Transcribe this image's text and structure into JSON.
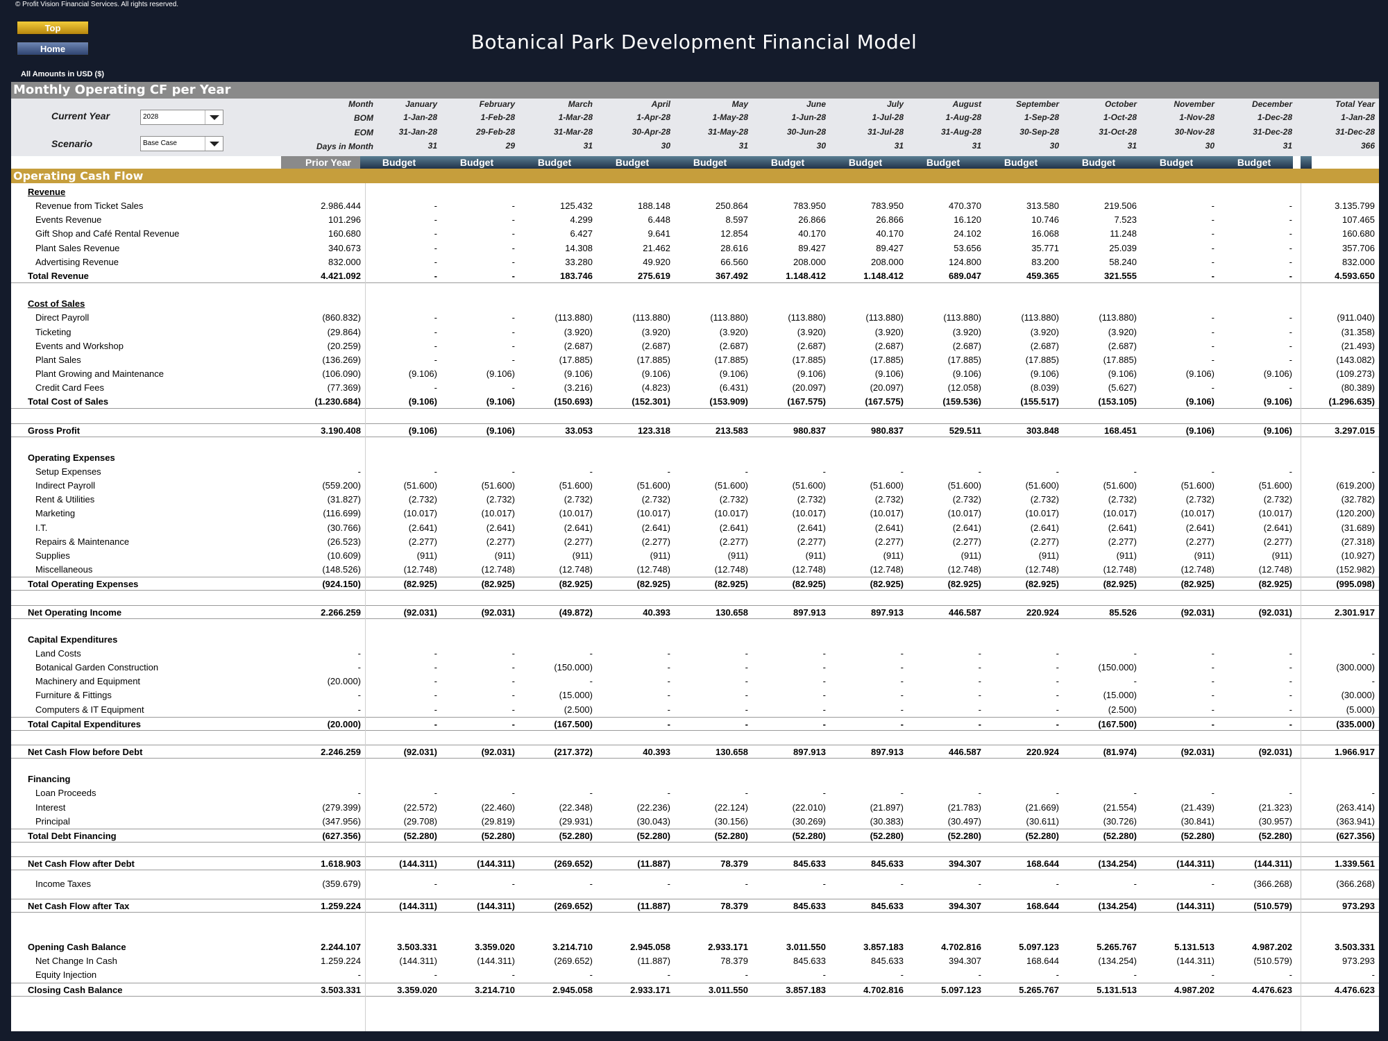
{
  "copyright": "© Profit Vision Financial Services. All rights reserved.",
  "nav": {
    "top_label": "Top",
    "home_label": "Home"
  },
  "title": "Botanical Park Development Financial Model",
  "amounts_note": "All Amounts in  USD ($)",
  "section_title": "Monthly Operating CF per Year",
  "controls": {
    "current_year_label": "Current Year",
    "current_year_value": "2028",
    "scenario_label": "Scenario",
    "scenario_value": "Base Case"
  },
  "header_labels": {
    "month": "Month",
    "bom": "BOM",
    "eom": "EOM",
    "days": "Days in Month"
  },
  "columns": [
    {
      "month": "",
      "bom": "",
      "eom": "",
      "days": "",
      "status": "Prior Year"
    },
    {
      "month": "January",
      "bom": "1-Jan-28",
      "eom": "31-Jan-28",
      "days": "31",
      "status": "Budget"
    },
    {
      "month": "February",
      "bom": "1-Feb-28",
      "eom": "29-Feb-28",
      "days": "29",
      "status": "Budget"
    },
    {
      "month": "March",
      "bom": "1-Mar-28",
      "eom": "31-Mar-28",
      "days": "31",
      "status": "Budget"
    },
    {
      "month": "April",
      "bom": "1-Apr-28",
      "eom": "30-Apr-28",
      "days": "30",
      "status": "Budget"
    },
    {
      "month": "May",
      "bom": "1-May-28",
      "eom": "31-May-28",
      "days": "31",
      "status": "Budget"
    },
    {
      "month": "June",
      "bom": "1-Jun-28",
      "eom": "30-Jun-28",
      "days": "30",
      "status": "Budget"
    },
    {
      "month": "July",
      "bom": "1-Jul-28",
      "eom": "31-Jul-28",
      "days": "31",
      "status": "Budget"
    },
    {
      "month": "August",
      "bom": "1-Aug-28",
      "eom": "31-Aug-28",
      "days": "31",
      "status": "Budget"
    },
    {
      "month": "September",
      "bom": "1-Sep-28",
      "eom": "30-Sep-28",
      "days": "30",
      "status": "Budget"
    },
    {
      "month": "October",
      "bom": "1-Oct-28",
      "eom": "31-Oct-28",
      "days": "31",
      "status": "Budget"
    },
    {
      "month": "November",
      "bom": "1-Nov-28",
      "eom": "30-Nov-28",
      "days": "30",
      "status": "Budget"
    },
    {
      "month": "December",
      "bom": "1-Dec-28",
      "eom": "31-Dec-28",
      "days": "31",
      "status": "Budget"
    },
    {
      "month": "Total Year",
      "bom": "1-Jan-28",
      "eom": "31-Dec-28",
      "days": "366",
      "status": ""
    }
  ],
  "ocf_title": "Operating Cash Flow",
  "rows": [
    {
      "type": "heading",
      "ul": true,
      "label": "Revenue"
    },
    {
      "type": "sub",
      "label": "Revenue from Ticket Sales",
      "values": [
        "2.986.444",
        "-",
        "-",
        "125.432",
        "188.148",
        "250.864",
        "783.950",
        "783.950",
        "470.370",
        "313.580",
        "219.506",
        "-",
        "-",
        "3.135.799"
      ]
    },
    {
      "type": "sub",
      "label": "Events Revenue",
      "values": [
        "101.296",
        "-",
        "-",
        "4.299",
        "6.448",
        "8.597",
        "26.866",
        "26.866",
        "16.120",
        "10.746",
        "7.523",
        "-",
        "-",
        "107.465"
      ]
    },
    {
      "type": "sub",
      "label": "Gift Shop and Café Rental Revenue",
      "values": [
        "160.680",
        "-",
        "-",
        "6.427",
        "9.641",
        "12.854",
        "40.170",
        "40.170",
        "24.102",
        "16.068",
        "11.248",
        "-",
        "-",
        "160.680"
      ]
    },
    {
      "type": "sub",
      "label": "Plant Sales Revenue",
      "values": [
        "340.673",
        "-",
        "-",
        "14.308",
        "21.462",
        "28.616",
        "89.427",
        "89.427",
        "53.656",
        "35.771",
        "25.039",
        "-",
        "-",
        "357.706"
      ]
    },
    {
      "type": "sub",
      "label": "Advertising Revenue",
      "values": [
        "832.000",
        "-",
        "-",
        "33.280",
        "49.920",
        "66.560",
        "208.000",
        "208.000",
        "124.800",
        "83.200",
        "58.240",
        "-",
        "-",
        "832.000"
      ]
    },
    {
      "type": "total",
      "label": "Total Revenue",
      "values": [
        "4.421.092",
        "-",
        "-",
        "183.746",
        "275.619",
        "367.492",
        "1.148.412",
        "1.148.412",
        "689.047",
        "459.365",
        "321.555",
        "-",
        "-",
        "4.593.650"
      ]
    },
    {
      "type": "blank"
    },
    {
      "type": "heading",
      "ul": true,
      "label": "Cost of Sales"
    },
    {
      "type": "sub",
      "label": "Direct Payroll",
      "values": [
        "(860.832)",
        "-",
        "-",
        "(113.880)",
        "(113.880)",
        "(113.880)",
        "(113.880)",
        "(113.880)",
        "(113.880)",
        "(113.880)",
        "(113.880)",
        "-",
        "-",
        "(911.040)"
      ]
    },
    {
      "type": "sub",
      "label": "Ticketing",
      "values": [
        "(29.864)",
        "-",
        "-",
        "(3.920)",
        "(3.920)",
        "(3.920)",
        "(3.920)",
        "(3.920)",
        "(3.920)",
        "(3.920)",
        "(3.920)",
        "-",
        "-",
        "(31.358)"
      ]
    },
    {
      "type": "sub",
      "label": "Events and Workshop",
      "values": [
        "(20.259)",
        "-",
        "-",
        "(2.687)",
        "(2.687)",
        "(2.687)",
        "(2.687)",
        "(2.687)",
        "(2.687)",
        "(2.687)",
        "(2.687)",
        "-",
        "-",
        "(21.493)"
      ]
    },
    {
      "type": "sub",
      "label": "Plant Sales",
      "values": [
        "(136.269)",
        "-",
        "-",
        "(17.885)",
        "(17.885)",
        "(17.885)",
        "(17.885)",
        "(17.885)",
        "(17.885)",
        "(17.885)",
        "(17.885)",
        "-",
        "-",
        "(143.082)"
      ]
    },
    {
      "type": "sub",
      "label": "Plant Growing and Maintenance",
      "values": [
        "(106.090)",
        "(9.106)",
        "(9.106)",
        "(9.106)",
        "(9.106)",
        "(9.106)",
        "(9.106)",
        "(9.106)",
        "(9.106)",
        "(9.106)",
        "(9.106)",
        "(9.106)",
        "(9.106)",
        "(109.273)"
      ]
    },
    {
      "type": "sub",
      "label": "Credit Card Fees",
      "values": [
        "(77.369)",
        "-",
        "-",
        "(3.216)",
        "(4.823)",
        "(6.431)",
        "(20.097)",
        "(20.097)",
        "(12.058)",
        "(8.039)",
        "(5.627)",
        "-",
        "-",
        "(80.389)"
      ]
    },
    {
      "type": "total",
      "label": "Total Cost of Sales",
      "values": [
        "(1.230.684)",
        "(9.106)",
        "(9.106)",
        "(150.693)",
        "(152.301)",
        "(153.909)",
        "(167.575)",
        "(167.575)",
        "(159.536)",
        "(155.517)",
        "(153.105)",
        "(9.106)",
        "(9.106)",
        "(1.296.635)"
      ]
    },
    {
      "type": "blank"
    },
    {
      "type": "total",
      "topline": true,
      "label": "Gross Profit",
      "values": [
        "3.190.408",
        "(9.106)",
        "(9.106)",
        "33.053",
        "123.318",
        "213.583",
        "980.837",
        "980.837",
        "529.511",
        "303.848",
        "168.451",
        "(9.106)",
        "(9.106)",
        "3.297.015"
      ]
    },
    {
      "type": "blank"
    },
    {
      "type": "heading",
      "label": "Operating Expenses"
    },
    {
      "type": "sub",
      "label": "Setup Expenses",
      "values": [
        "-",
        "-",
        "-",
        "-",
        "-",
        "-",
        "-",
        "-",
        "-",
        "-",
        "-",
        "-",
        "-",
        "-"
      ]
    },
    {
      "type": "sub",
      "label": "Indirect Payroll",
      "values": [
        "(559.200)",
        "(51.600)",
        "(51.600)",
        "(51.600)",
        "(51.600)",
        "(51.600)",
        "(51.600)",
        "(51.600)",
        "(51.600)",
        "(51.600)",
        "(51.600)",
        "(51.600)",
        "(51.600)",
        "(619.200)"
      ]
    },
    {
      "type": "sub",
      "label": "Rent & Utilities",
      "values": [
        "(31.827)",
        "(2.732)",
        "(2.732)",
        "(2.732)",
        "(2.732)",
        "(2.732)",
        "(2.732)",
        "(2.732)",
        "(2.732)",
        "(2.732)",
        "(2.732)",
        "(2.732)",
        "(2.732)",
        "(32.782)"
      ]
    },
    {
      "type": "sub",
      "label": "Marketing",
      "values": [
        "(116.699)",
        "(10.017)",
        "(10.017)",
        "(10.017)",
        "(10.017)",
        "(10.017)",
        "(10.017)",
        "(10.017)",
        "(10.017)",
        "(10.017)",
        "(10.017)",
        "(10.017)",
        "(10.017)",
        "(120.200)"
      ]
    },
    {
      "type": "sub",
      "label": "I.T.",
      "values": [
        "(30.766)",
        "(2.641)",
        "(2.641)",
        "(2.641)",
        "(2.641)",
        "(2.641)",
        "(2.641)",
        "(2.641)",
        "(2.641)",
        "(2.641)",
        "(2.641)",
        "(2.641)",
        "(2.641)",
        "(31.689)"
      ]
    },
    {
      "type": "sub",
      "label": "Repairs & Maintenance",
      "values": [
        "(26.523)",
        "(2.277)",
        "(2.277)",
        "(2.277)",
        "(2.277)",
        "(2.277)",
        "(2.277)",
        "(2.277)",
        "(2.277)",
        "(2.277)",
        "(2.277)",
        "(2.277)",
        "(2.277)",
        "(27.318)"
      ]
    },
    {
      "type": "sub",
      "label": "Supplies",
      "values": [
        "(10.609)",
        "(911)",
        "(911)",
        "(911)",
        "(911)",
        "(911)",
        "(911)",
        "(911)",
        "(911)",
        "(911)",
        "(911)",
        "(911)",
        "(911)",
        "(10.927)"
      ]
    },
    {
      "type": "sub",
      "label": "Miscellaneous",
      "values": [
        "(148.526)",
        "(12.748)",
        "(12.748)",
        "(12.748)",
        "(12.748)",
        "(12.748)",
        "(12.748)",
        "(12.748)",
        "(12.748)",
        "(12.748)",
        "(12.748)",
        "(12.748)",
        "(12.748)",
        "(152.982)"
      ]
    },
    {
      "type": "total",
      "topline": true,
      "label": "Total Operating Expenses",
      "values": [
        "(924.150)",
        "(82.925)",
        "(82.925)",
        "(82.925)",
        "(82.925)",
        "(82.925)",
        "(82.925)",
        "(82.925)",
        "(82.925)",
        "(82.925)",
        "(82.925)",
        "(82.925)",
        "(82.925)",
        "(995.098)"
      ]
    },
    {
      "type": "blank"
    },
    {
      "type": "total",
      "topline": true,
      "label": "Net Operating Income",
      "values": [
        "2.266.259",
        "(92.031)",
        "(92.031)",
        "(49.872)",
        "40.393",
        "130.658",
        "897.913",
        "897.913",
        "446.587",
        "220.924",
        "85.526",
        "(92.031)",
        "(92.031)",
        "2.301.917"
      ]
    },
    {
      "type": "blank"
    },
    {
      "type": "heading",
      "label": "Capital Expenditures"
    },
    {
      "type": "sub",
      "label": "Land Costs",
      "values": [
        "-",
        "-",
        "-",
        "-",
        "-",
        "-",
        "-",
        "-",
        "-",
        "-",
        "-",
        "-",
        "-",
        "-"
      ]
    },
    {
      "type": "sub",
      "label": "Botanical Garden Construction",
      "values": [
        "-",
        "-",
        "-",
        "(150.000)",
        "-",
        "-",
        "-",
        "-",
        "-",
        "-",
        "(150.000)",
        "-",
        "-",
        "(300.000)"
      ]
    },
    {
      "type": "sub",
      "label": "Machinery and Equipment",
      "values": [
        "(20.000)",
        "-",
        "-",
        "-",
        "-",
        "-",
        "-",
        "-",
        "-",
        "-",
        "-",
        "-",
        "-",
        "-"
      ]
    },
    {
      "type": "sub",
      "label": "Furniture & Fittings",
      "values": [
        "-",
        "-",
        "-",
        "(15.000)",
        "-",
        "-",
        "-",
        "-",
        "-",
        "-",
        "(15.000)",
        "-",
        "-",
        "(30.000)"
      ]
    },
    {
      "type": "sub",
      "label": "Computers & IT Equipment",
      "values": [
        "-",
        "-",
        "-",
        "(2.500)",
        "-",
        "-",
        "-",
        "-",
        "-",
        "-",
        "(2.500)",
        "-",
        "-",
        "(5.000)"
      ]
    },
    {
      "type": "total",
      "topline": true,
      "label": "Total Capital Expenditures",
      "values": [
        "(20.000)",
        "-",
        "-",
        "(167.500)",
        "-",
        "-",
        "-",
        "-",
        "-",
        "-",
        "(167.500)",
        "-",
        "-",
        "(335.000)"
      ]
    },
    {
      "type": "blank"
    },
    {
      "type": "total",
      "topline": true,
      "label": "Net Cash Flow before Debt",
      "values": [
        "2.246.259",
        "(92.031)",
        "(92.031)",
        "(217.372)",
        "40.393",
        "130.658",
        "897.913",
        "897.913",
        "446.587",
        "220.924",
        "(81.974)",
        "(92.031)",
        "(92.031)",
        "1.966.917"
      ]
    },
    {
      "type": "blank"
    },
    {
      "type": "heading",
      "label": "Financing"
    },
    {
      "type": "sub",
      "label": "Loan Proceeds",
      "values": [
        "-",
        "-",
        "-",
        "-",
        "-",
        "-",
        "-",
        "-",
        "-",
        "-",
        "-",
        "-",
        "-",
        "-"
      ]
    },
    {
      "type": "sub",
      "label": "Interest",
      "values": [
        "(279.399)",
        "(22.572)",
        "(22.460)",
        "(22.348)",
        "(22.236)",
        "(22.124)",
        "(22.010)",
        "(21.897)",
        "(21.783)",
        "(21.669)",
        "(21.554)",
        "(21.439)",
        "(21.323)",
        "(263.414)"
      ]
    },
    {
      "type": "sub",
      "label": "Principal",
      "values": [
        "(347.956)",
        "(29.708)",
        "(29.819)",
        "(29.931)",
        "(30.043)",
        "(30.156)",
        "(30.269)",
        "(30.383)",
        "(30.497)",
        "(30.611)",
        "(30.726)",
        "(30.841)",
        "(30.957)",
        "(363.941)"
      ]
    },
    {
      "type": "total",
      "topline": true,
      "label": "Total Debt Financing",
      "values": [
        "(627.356)",
        "(52.280)",
        "(52.280)",
        "(52.280)",
        "(52.280)",
        "(52.280)",
        "(52.280)",
        "(52.280)",
        "(52.280)",
        "(52.280)",
        "(52.280)",
        "(52.280)",
        "(52.280)",
        "(627.356)"
      ]
    },
    {
      "type": "blank"
    },
    {
      "type": "total",
      "topline": true,
      "label": "Net Cash Flow after Debt",
      "values": [
        "1.618.903",
        "(144.311)",
        "(144.311)",
        "(269.652)",
        "(11.887)",
        "78.379",
        "845.633",
        "845.633",
        "394.307",
        "168.644",
        "(134.254)",
        "(144.311)",
        "(144.311)",
        "1.339.561"
      ]
    },
    {
      "type": "spacer"
    },
    {
      "type": "sub",
      "label": "Income Taxes",
      "values": [
        "(359.679)",
        "-",
        "-",
        "-",
        "-",
        "-",
        "-",
        "-",
        "-",
        "-",
        "-",
        "-",
        "(366.268)",
        "(366.268)"
      ]
    },
    {
      "type": "spacer"
    },
    {
      "type": "total",
      "topline": true,
      "label": "Net Cash Flow after Tax",
      "values": [
        "1.259.224",
        "(144.311)",
        "(144.311)",
        "(269.652)",
        "(11.887)",
        "78.379",
        "845.633",
        "845.633",
        "394.307",
        "168.644",
        "(134.254)",
        "(144.311)",
        "(510.579)",
        "973.293"
      ]
    },
    {
      "type": "blank"
    },
    {
      "type": "blank"
    },
    {
      "type": "total",
      "nobottom": true,
      "label": "Opening Cash Balance",
      "values": [
        "2.244.107",
        "3.503.331",
        "3.359.020",
        "3.214.710",
        "2.945.058",
        "2.933.171",
        "3.011.550",
        "3.857.183",
        "4.702.816",
        "5.097.123",
        "5.265.767",
        "5.131.513",
        "4.987.202",
        "3.503.331"
      ]
    },
    {
      "type": "sub",
      "label": "Net Change In Cash",
      "values": [
        "1.259.224",
        "(144.311)",
        "(144.311)",
        "(269.652)",
        "(11.887)",
        "78.379",
        "845.633",
        "845.633",
        "394.307",
        "168.644",
        "(134.254)",
        "(144.311)",
        "(510.579)",
        "973.293"
      ]
    },
    {
      "type": "sub",
      "label": "Equity Injection",
      "values": [
        "-",
        "-",
        "-",
        "-",
        "-",
        "-",
        "-",
        "-",
        "-",
        "-",
        "-",
        "-",
        "-",
        "-"
      ]
    },
    {
      "type": "total",
      "topline": true,
      "label": "Closing Cash Balance",
      "values": [
        "3.503.331",
        "3.359.020",
        "3.214.710",
        "2.945.058",
        "2.933.171",
        "3.011.550",
        "3.857.183",
        "4.702.816",
        "5.097.123",
        "5.265.767",
        "5.131.513",
        "4.987.202",
        "4.476.623",
        "4.476.623"
      ]
    }
  ]
}
